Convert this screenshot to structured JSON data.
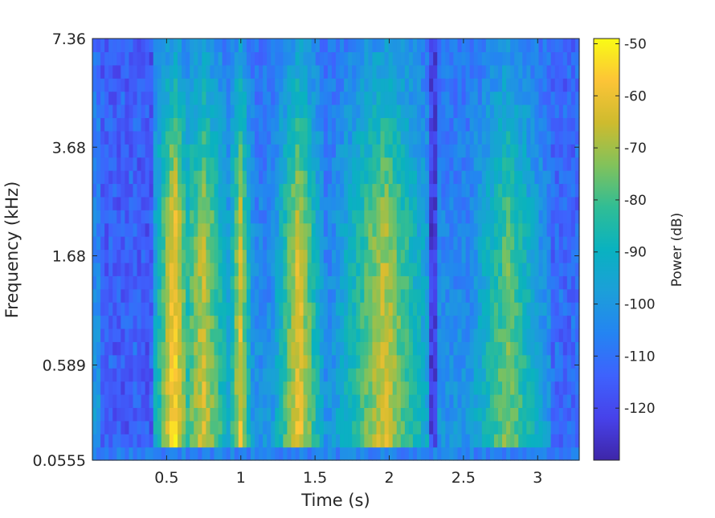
{
  "chart_data": {
    "type": "heatmap",
    "title": "",
    "xlabel": "Time (s)",
    "ylabel": "Frequency (kHz)",
    "xlim": [
      0.0,
      3.28
    ],
    "x_ticks": [
      {
        "value": 0.5,
        "label": "0.5"
      },
      {
        "value": 1.0,
        "label": "1"
      },
      {
        "value": 1.5,
        "label": "1.5"
      },
      {
        "value": 2.0,
        "label": "2"
      },
      {
        "value": 2.5,
        "label": "2.5"
      },
      {
        "value": 3.0,
        "label": "3"
      }
    ],
    "y_scale": "mel",
    "y_ticks": [
      {
        "value": 0.0555,
        "label": "0.0555"
      },
      {
        "value": 0.589,
        "label": "0.589"
      },
      {
        "value": 1.68,
        "label": "1.68"
      },
      {
        "value": 3.68,
        "label": "3.68"
      },
      {
        "value": 7.36,
        "label": "7.36"
      }
    ],
    "colorbar": {
      "label": "Power (dB)",
      "range": [
        -130,
        -49
      ],
      "ticks": [
        -50,
        -60,
        -70,
        -80,
        -90,
        -100,
        -110,
        -120
      ],
      "colormap": "parula"
    },
    "description_values": {
      "loud_time_segments_s": [
        [
          0.48,
          0.62,
          -52
        ],
        [
          0.63,
          0.86,
          -62
        ],
        [
          0.97,
          1.02,
          -60
        ],
        [
          1.3,
          1.48,
          -58
        ],
        [
          1.75,
          2.18,
          -63
        ],
        [
          2.65,
          2.95,
          -72
        ]
      ],
      "quiet_time_segments_s": [
        [
          0.05,
          0.42,
          -118
        ],
        [
          2.28,
          2.33,
          -125
        ],
        [
          3.1,
          3.28,
          -115
        ]
      ]
    }
  }
}
